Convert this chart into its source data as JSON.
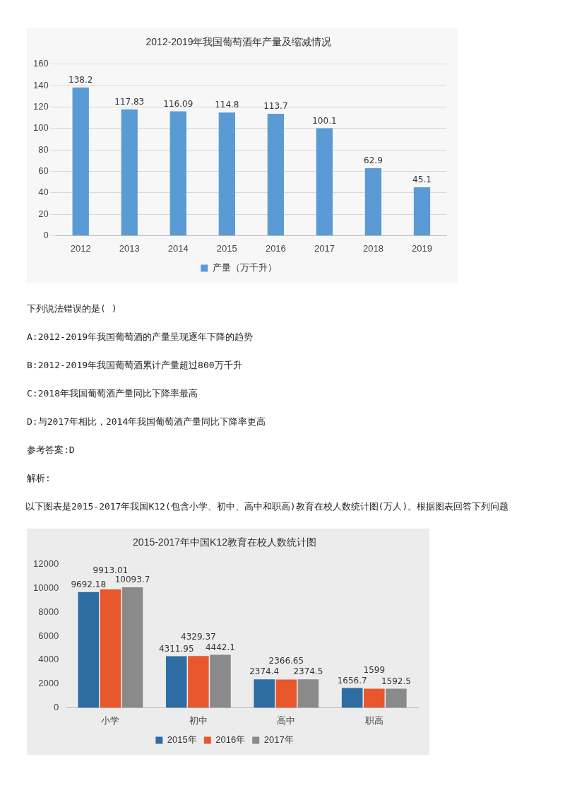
{
  "chart_data": [
    {
      "type": "bar",
      "title": "2012-2019年我国葡萄酒年产量及缩减情况",
      "categories": [
        "2012",
        "2013",
        "2014",
        "2015",
        "2016",
        "2017",
        "2018",
        "2019"
      ],
      "series": [
        {
          "name": "产量（万千升）",
          "color": "#5b9bd5",
          "values": [
            138.2,
            117.83,
            116.09,
            114.8,
            113.7,
            100.1,
            62.9,
            45.1
          ]
        }
      ],
      "ylim": [
        0,
        160
      ],
      "yticks": [
        0,
        20,
        40,
        60,
        80,
        100,
        120,
        140,
        160
      ],
      "grid": "y",
      "legend": "bottom",
      "data_labels": true,
      "annotations": [
        "下列说法错误的是( )",
        "A:2012-2019年我国葡萄酒的产量呈现逐年下降的趋势",
        "B:2012-2019年我国葡萄酒累计产量超过800万千升",
        "C:2018年我国葡萄酒产量同比下降率最高",
        "D:与2017年相比，2014年我国葡萄酒产量同比下降率更高",
        "参考答案:D",
        "解析:"
      ]
    },
    {
      "type": "bar",
      "title": "2015-2017年中国K12教育在校人数统计图",
      "categories": [
        "小学",
        "初中",
        "高中",
        "职高"
      ],
      "series": [
        {
          "name": "2015年",
          "color": "#2e6da4",
          "values": [
            9692.18,
            4311.95,
            2374.4,
            1656.7
          ]
        },
        {
          "name": "2016年",
          "color": "#e8582c",
          "values": [
            9913.01,
            4329.37,
            2366.65,
            1599
          ]
        },
        {
          "name": "2017年",
          "color": "#8a8a8a",
          "values": [
            10093.7,
            4442.1,
            2374.5,
            1592.5
          ]
        }
      ],
      "ylim": [
        0,
        12000
      ],
      "yticks": [
        0,
        2000,
        4000,
        6000,
        8000,
        10000,
        12000
      ],
      "legend": "bottom",
      "data_labels": true,
      "annotations": [
        "以下图表是2015-2017年我国K12(包含小学、初中、高中和职高)教育在校人数统计图(万人)。根据图表回答下列问题"
      ]
    }
  ]
}
